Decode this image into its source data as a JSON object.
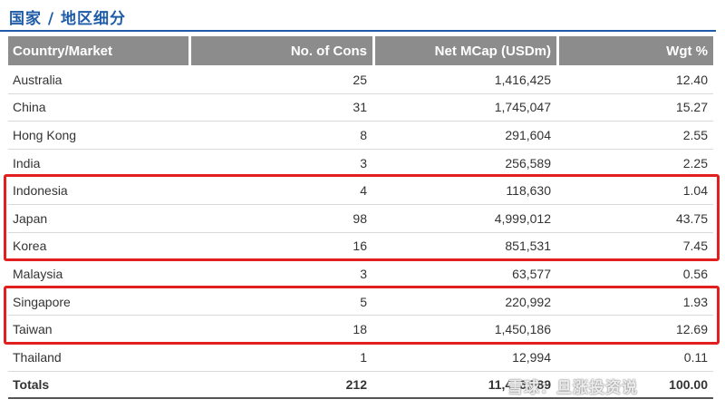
{
  "title": "国家 / 地区细分",
  "table": {
    "headers": [
      "Country/Market",
      "No. of Cons",
      "Net MCap (USDm)",
      "Wgt %"
    ],
    "rows": [
      {
        "country": "Australia",
        "cons": "25",
        "mcap": "1,416,425",
        "wgt": "12.40"
      },
      {
        "country": "China",
        "cons": "31",
        "mcap": "1,745,047",
        "wgt": "15.27"
      },
      {
        "country": "Hong Kong",
        "cons": "8",
        "mcap": "291,604",
        "wgt": "2.55"
      },
      {
        "country": "India",
        "cons": "3",
        "mcap": "256,589",
        "wgt": "2.25"
      },
      {
        "country": "Indonesia",
        "cons": "4",
        "mcap": "118,630",
        "wgt": "1.04"
      },
      {
        "country": "Japan",
        "cons": "98",
        "mcap": "4,999,012",
        "wgt": "43.75"
      },
      {
        "country": "Korea",
        "cons": "16",
        "mcap": "851,531",
        "wgt": "7.45"
      },
      {
        "country": "Malaysia",
        "cons": "3",
        "mcap": "63,577",
        "wgt": "0.56"
      },
      {
        "country": "Singapore",
        "cons": "5",
        "mcap": "220,992",
        "wgt": "1.93"
      },
      {
        "country": "Taiwan",
        "cons": "18",
        "mcap": "1,450,186",
        "wgt": "12.69"
      },
      {
        "country": "Thailand",
        "cons": "1",
        "mcap": "12,994",
        "wgt": "0.11"
      }
    ],
    "totals": {
      "label": "Totals",
      "cons": "212",
      "mcap": "11,426,589",
      "wgt": "100.00"
    }
  },
  "highlighted_countries": [
    "Indonesia",
    "Japan",
    "Korea",
    "Singapore",
    "Taiwan"
  ],
  "colors": {
    "title": "#1f5ca8",
    "header_bg": "#8c8c8c",
    "highlight": "#e11f1f"
  },
  "watermark": "雪球：旦涨投资说"
}
